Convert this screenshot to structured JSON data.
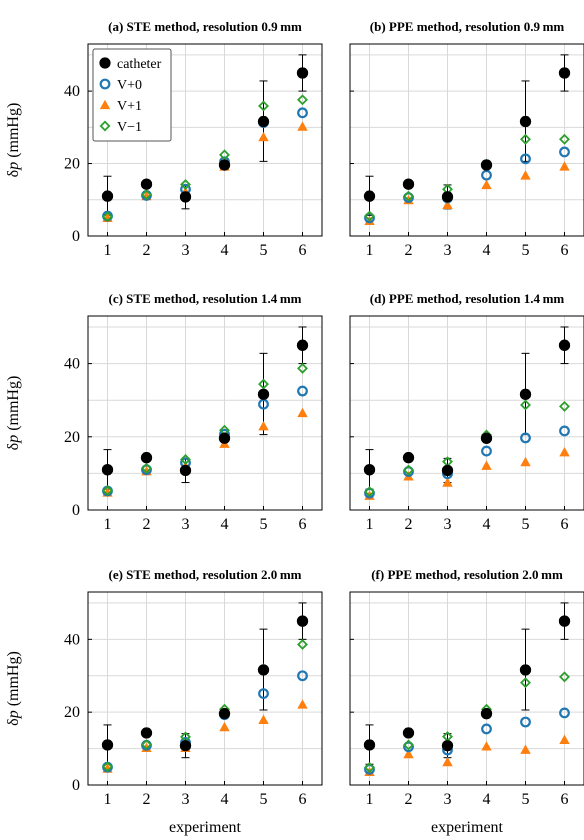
{
  "colors": {
    "catheter": "#000000",
    "v0": "#1f77b4",
    "v1": "#ff7f0e",
    "vm1": "#2ca02c",
    "grid": "#d9d9d9"
  },
  "legend": [
    {
      "key": "catheter",
      "label": "catheter",
      "marker": "filled-circle"
    },
    {
      "key": "v0",
      "label": "V+0",
      "marker": "open-circle"
    },
    {
      "key": "v1",
      "label": "V+1",
      "marker": "triangle"
    },
    {
      "key": "vm1",
      "label": "V−1",
      "marker": "diamond"
    }
  ],
  "ylabel_prefix": "δ",
  "ylabel_var": "p",
  "ylabel_unit": " (mmHg)",
  "xlabel": "experiment",
  "chart_data": [
    {
      "type": "scatter",
      "title": "(a)  STE method, resolution 0.9 mm",
      "x": [
        1,
        2,
        3,
        4,
        5,
        6
      ],
      "xticks": [
        "1",
        "2",
        "3",
        "4",
        "5",
        "6"
      ],
      "ylim": [
        0,
        53
      ],
      "yticks": [
        0,
        20,
        40
      ],
      "grid": true,
      "legend_position": "top-left",
      "series": [
        {
          "key": "catheter",
          "values": [
            11,
            14.3,
            10.8,
            19.6,
            31.6,
            45
          ],
          "err_low": [
            5.3,
            0,
            3.3,
            0.5,
            11,
            5
          ],
          "err_high": [
            5.5,
            0,
            3.3,
            0.5,
            11.2,
            5
          ]
        },
        {
          "key": "v0",
          "values": [
            5.5,
            11.2,
            12.9,
            20.5,
            31.3,
            34
          ]
        },
        {
          "key": "v1",
          "values": [
            5.0,
            11.0,
            12.2,
            19.2,
            27.3,
            30.2
          ]
        },
        {
          "key": "vm1",
          "values": [
            5.3,
            11.4,
            14.2,
            22.4,
            35.9,
            37.6
          ]
        }
      ]
    },
    {
      "type": "scatter",
      "title": "(b)  PPE method, resolution 0.9 mm",
      "x": [
        1,
        2,
        3,
        4,
        5,
        6
      ],
      "xticks": [
        "1",
        "2",
        "3",
        "4",
        "5",
        "6"
      ],
      "ylim": [
        0,
        53
      ],
      "yticks": [
        0,
        20,
        40
      ],
      "grid": true,
      "series": [
        {
          "key": "catheter",
          "values": [
            11,
            14.3,
            10.8,
            19.6,
            31.6,
            45
          ],
          "err_low": [
            5.3,
            0,
            3.3,
            0.5,
            11,
            5
          ],
          "err_high": [
            5.5,
            0,
            3.3,
            0.5,
            11.2,
            5
          ]
        },
        {
          "key": "v0",
          "values": [
            5.0,
            10.6,
            10.5,
            16.8,
            21.3,
            23.2
          ]
        },
        {
          "key": "v1",
          "values": [
            4.2,
            9.9,
            8.6,
            14.1,
            16.7,
            19.2
          ]
        },
        {
          "key": "vm1",
          "values": [
            5.5,
            11.0,
            12.9,
            19.8,
            26.7,
            26.7
          ]
        }
      ]
    },
    {
      "type": "scatter",
      "title": "(c)  STE method, resolution 1.4 mm",
      "x": [
        1,
        2,
        3,
        4,
        5,
        6
      ],
      "xticks": [
        "1",
        "2",
        "3",
        "4",
        "5",
        "6"
      ],
      "ylim": [
        0,
        53
      ],
      "yticks": [
        0,
        20,
        40
      ],
      "grid": true,
      "series": [
        {
          "key": "catheter",
          "values": [
            11,
            14.3,
            10.8,
            19.6,
            31.6,
            45
          ],
          "err_low": [
            5.3,
            0,
            3.3,
            0.5,
            11,
            5
          ],
          "err_high": [
            5.5,
            0,
            3.3,
            0.5,
            11.2,
            5
          ]
        },
        {
          "key": "v0",
          "values": [
            5.2,
            11.0,
            12.9,
            20.7,
            28.9,
            32.5
          ]
        },
        {
          "key": "v1",
          "values": [
            4.8,
            10.6,
            12.0,
            18.1,
            22.9,
            26.5
          ]
        },
        {
          "key": "vm1",
          "values": [
            5.3,
            11.4,
            13.8,
            21.8,
            34.4,
            38.7
          ]
        }
      ]
    },
    {
      "type": "scatter",
      "title": "(d)  PPE method, resolution 1.4 mm",
      "x": [
        1,
        2,
        3,
        4,
        5,
        6
      ],
      "xticks": [
        "1",
        "2",
        "3",
        "4",
        "5",
        "6"
      ],
      "ylim": [
        0,
        53
      ],
      "yticks": [
        0,
        20,
        40
      ],
      "grid": true,
      "series": [
        {
          "key": "catheter",
          "values": [
            11,
            14.3,
            10.8,
            19.6,
            31.6,
            45
          ],
          "err_low": [
            5.3,
            0,
            3.3,
            0.5,
            11,
            5
          ],
          "err_high": [
            5.5,
            0,
            3.3,
            0.5,
            11.2,
            5
          ]
        },
        {
          "key": "v0",
          "values": [
            4.6,
            10.5,
            9.9,
            16.1,
            19.7,
            21.6
          ]
        },
        {
          "key": "v1",
          "values": [
            3.9,
            9.2,
            7.5,
            12.1,
            13.1,
            15.8
          ]
        },
        {
          "key": "vm1",
          "values": [
            5.0,
            10.9,
            13.2,
            20.5,
            28.7,
            28.3
          ]
        }
      ]
    },
    {
      "type": "scatter",
      "title": "(e)  STE method, resolution 2.0 mm",
      "x": [
        1,
        2,
        3,
        4,
        5,
        6
      ],
      "xticks": [
        "1",
        "2",
        "3",
        "4",
        "5",
        "6"
      ],
      "ylim": [
        0,
        53
      ],
      "yticks": [
        0,
        20,
        40
      ],
      "grid": true,
      "series": [
        {
          "key": "catheter",
          "values": [
            11,
            14.3,
            10.8,
            19.6,
            31.6,
            45
          ],
          "err_low": [
            5.3,
            0,
            3.3,
            0.5,
            11,
            5
          ],
          "err_high": [
            5.5,
            0,
            3.3,
            0.5,
            11.2,
            5
          ]
        },
        {
          "key": "v0",
          "values": [
            4.9,
            10.9,
            11.7,
            19.3,
            25.1,
            30.0
          ]
        },
        {
          "key": "v1",
          "values": [
            4.5,
            10.2,
            10.2,
            15.9,
            17.9,
            22.1
          ]
        },
        {
          "key": "vm1",
          "values": [
            5.0,
            11.1,
            13.2,
            20.8,
            31.9,
            38.6
          ]
        }
      ]
    },
    {
      "type": "scatter",
      "title": "(f)  PPE method, resolution 2.0 mm",
      "x": [
        1,
        2,
        3,
        4,
        5,
        6
      ],
      "xticks": [
        "1",
        "2",
        "3",
        "4",
        "5",
        "6"
      ],
      "ylim": [
        0,
        53
      ],
      "yticks": [
        0,
        20,
        40
      ],
      "grid": true,
      "series": [
        {
          "key": "catheter",
          "values": [
            11,
            14.3,
            10.8,
            19.6,
            31.6,
            45
          ],
          "err_low": [
            5.3,
            0,
            3.3,
            0.5,
            11,
            5
          ],
          "err_high": [
            5.5,
            0,
            3.3,
            0.5,
            11.2,
            5
          ]
        },
        {
          "key": "v0",
          "values": [
            4.3,
            10.5,
            9.6,
            15.4,
            17.3,
            19.8
          ]
        },
        {
          "key": "v1",
          "values": [
            3.6,
            8.5,
            6.3,
            10.6,
            9.7,
            12.4
          ]
        },
        {
          "key": "vm1",
          "values": [
            4.8,
            11.0,
            13.3,
            20.8,
            28.1,
            29.7
          ]
        }
      ]
    }
  ]
}
